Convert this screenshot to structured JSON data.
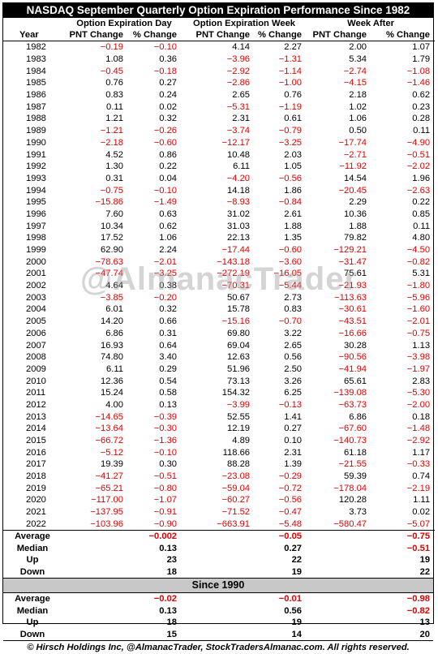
{
  "title": "NASDAQ September Quarterly Option Expiration Performance Since 1982",
  "groups": [
    "Option Expiration Day",
    "Option Expiration Week",
    "Week After"
  ],
  "col_year": "Year",
  "col_pnt": "PNT Change",
  "col_pct": "% Change",
  "rows": [
    [
      "1982",
      "−0.19",
      "−0.10",
      "4.14",
      "2.27",
      "2.00",
      "1.07"
    ],
    [
      "1983",
      "1.08",
      "0.36",
      "−3.96",
      "−1.31",
      "5.34",
      "1.79"
    ],
    [
      "1984",
      "−0.45",
      "−0.18",
      "−2.92",
      "−1.14",
      "−2.74",
      "−1.08"
    ],
    [
      "1985",
      "0.76",
      "0.27",
      "−2.86",
      "−1.00",
      "−4.15",
      "−1.46"
    ],
    [
      "1986",
      "0.83",
      "0.24",
      "2.65",
      "0.76",
      "2.18",
      "0.62"
    ],
    [
      "1987",
      "0.11",
      "0.02",
      "−5.31",
      "−1.19",
      "1.02",
      "0.23"
    ],
    [
      "1988",
      "1.21",
      "0.32",
      "2.31",
      "0.61",
      "1.06",
      "0.28"
    ],
    [
      "1989",
      "−1.21",
      "−0.26",
      "−3.74",
      "−0.79",
      "0.50",
      "0.11"
    ],
    [
      "1990",
      "−2.18",
      "−0.60",
      "−12.17",
      "−3.25",
      "−17.74",
      "−4.90"
    ],
    [
      "1991",
      "4.52",
      "0.86",
      "10.48",
      "2.03",
      "−2.71",
      "−0.51"
    ],
    [
      "1992",
      "1.30",
      "0.22",
      "6.11",
      "1.05",
      "−11.92",
      "−2.02"
    ],
    [
      "1993",
      "0.31",
      "0.04",
      "−4.20",
      "−0.56",
      "14.54",
      "1.96"
    ],
    [
      "1994",
      "−0.75",
      "−0.10",
      "14.18",
      "1.86",
      "−20.45",
      "−2.63"
    ],
    [
      "1995",
      "−15.86",
      "−1.49",
      "−8.93",
      "−0.84",
      "2.29",
      "0.22"
    ],
    [
      "1996",
      "7.60",
      "0.63",
      "31.02",
      "2.61",
      "10.36",
      "0.85"
    ],
    [
      "1997",
      "10.34",
      "0.62",
      "31.03",
      "1.88",
      "1.88",
      "0.11"
    ],
    [
      "1998",
      "17.52",
      "1.06",
      "22.13",
      "1.35",
      "79.82",
      "4.80"
    ],
    [
      "1999",
      "62.90",
      "2.24",
      "−17.44",
      "−0.60",
      "−129.21",
      "−4.50"
    ],
    [
      "2000",
      "−78.63",
      "−2.01",
      "−143.18",
      "−3.60",
      "−31.47",
      "−0.82"
    ],
    [
      "2001",
      "−47.74",
      "−3.25",
      "−272.19",
      "−16.05",
      "75.61",
      "5.31"
    ],
    [
      "2002",
      "4.64",
      "0.38",
      "−70.31",
      "−5.44",
      "−21.93",
      "−1.80"
    ],
    [
      "2003",
      "−3.85",
      "−0.20",
      "50.67",
      "2.73",
      "−113.63",
      "−5.96"
    ],
    [
      "2004",
      "6.01",
      "0.32",
      "15.78",
      "0.83",
      "−30.61",
      "−1.60"
    ],
    [
      "2005",
      "14.20",
      "0.66",
      "−15.16",
      "−0.70",
      "−43.51",
      "−2.01"
    ],
    [
      "2006",
      "6.86",
      "0.31",
      "69.80",
      "3.22",
      "−16.66",
      "−0.75"
    ],
    [
      "2007",
      "16.93",
      "0.64",
      "69.04",
      "2.65",
      "30.28",
      "1.13"
    ],
    [
      "2008",
      "74.80",
      "3.40",
      "12.63",
      "0.56",
      "−90.56",
      "−3.98"
    ],
    [
      "2009",
      "6.11",
      "0.29",
      "51.96",
      "2.50",
      "−41.94",
      "−1.97"
    ],
    [
      "2010",
      "12.36",
      "0.54",
      "73.13",
      "3.26",
      "65.61",
      "2.83"
    ],
    [
      "2011",
      "15.24",
      "0.58",
      "154.32",
      "6.25",
      "−139.08",
      "−5.30"
    ],
    [
      "2012",
      "4.00",
      "0.13",
      "−3.99",
      "−0.13",
      "−63.73",
      "−2.00"
    ],
    [
      "2013",
      "−14.65",
      "−0.39",
      "52.55",
      "1.41",
      "6.86",
      "0.18"
    ],
    [
      "2014",
      "−13.64",
      "−0.30",
      "12.19",
      "0.27",
      "−67.60",
      "−1.48"
    ],
    [
      "2015",
      "−66.72",
      "−1.36",
      "4.89",
      "0.10",
      "−140.73",
      "−2.92"
    ],
    [
      "2016",
      "−5.12",
      "−0.10",
      "118.66",
      "2.31",
      "61.18",
      "1.17"
    ],
    [
      "2017",
      "19.39",
      "0.30",
      "88.28",
      "1.39",
      "−21.55",
      "−0.33"
    ],
    [
      "2018",
      "−41.27",
      "−0.51",
      "−23.08",
      "−0.29",
      "59.39",
      "0.74"
    ],
    [
      "2019",
      "−65.21",
      "−0.80",
      "−59.04",
      "−0.72",
      "−178.04",
      "−2.19"
    ],
    [
      "2020",
      "−117.00",
      "−1.07",
      "−60.27",
      "−0.56",
      "120.28",
      "1.11"
    ],
    [
      "2021",
      "−137.95",
      "−0.91",
      "−71.52",
      "−0.47",
      "3.73",
      "0.02"
    ],
    [
      "2022",
      "−103.96",
      "−0.90",
      "−663.91",
      "−5.48",
      "−580.47",
      "−5.07"
    ]
  ],
  "stats": [
    {
      "label": "Average",
      "day": "−0.002",
      "week": "−0.05",
      "after": "−0.75"
    },
    {
      "label": "Median",
      "day": "0.13",
      "week": "0.27",
      "after": "−0.51"
    },
    {
      "label": "Up",
      "day": "23",
      "week": "22",
      "after": "19"
    },
    {
      "label": "Down",
      "day": "18",
      "week": "19",
      "after": "22"
    }
  ],
  "since_label": "Since 1990",
  "stats_1990": [
    {
      "label": "Average",
      "day": "−0.02",
      "week": "−0.01",
      "after": "−0.98"
    },
    {
      "label": "Median",
      "day": "0.13",
      "week": "0.56",
      "after": "−0.82"
    },
    {
      "label": "Up",
      "day": "18",
      "week": "19",
      "after": "13"
    },
    {
      "label": "Down",
      "day": "15",
      "week": "14",
      "after": "20"
    }
  ],
  "footer": "© Hirsch Holdings Inc, @AlmanacTrader, StockTradersAlmanac.com. All rights reserved.",
  "watermark": "@AlmanacTrader",
  "colors": {
    "negative": "#e00000",
    "header_bg": "#000000",
    "band_bg": "#c8c8c8"
  }
}
